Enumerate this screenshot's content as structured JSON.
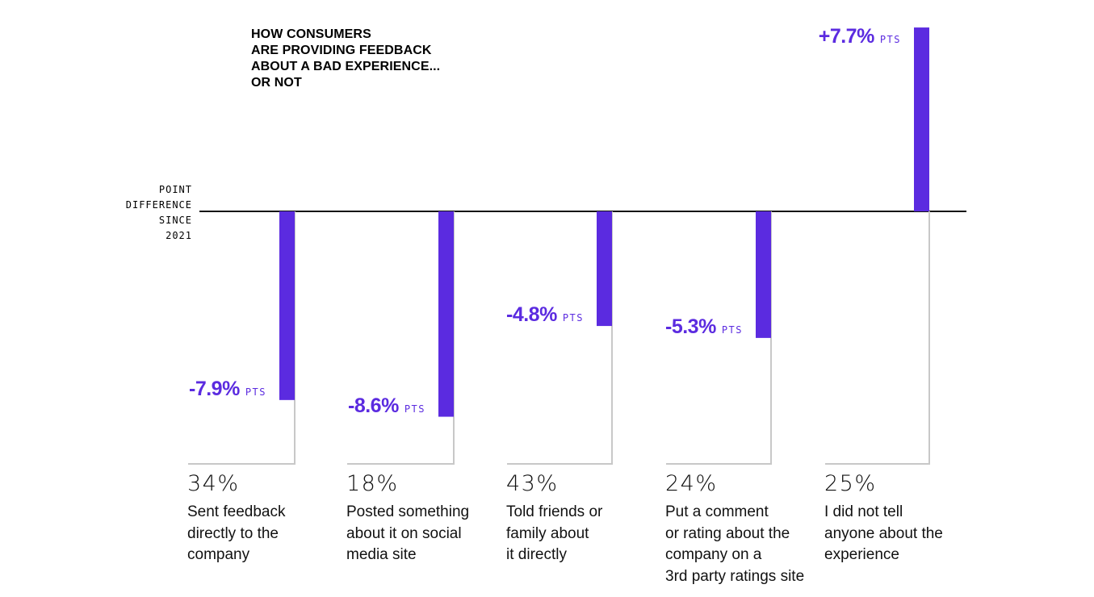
{
  "chart_data": {
    "type": "bar",
    "title_lines": [
      "HOW CONSUMERS",
      "ARE PROVIDING FEEDBACK",
      "ABOUT A BAD EXPERIENCE...",
      "OR NOT"
    ],
    "ylabel_lines": [
      "POINT",
      "DIFFERENCE",
      "SINCE",
      "2021"
    ],
    "unit_label": "PTS",
    "categories": [
      {
        "label_lines": [
          "Sent feedback",
          "directly to the",
          "company"
        ],
        "share": "34%",
        "change": -7.9,
        "change_label": "-7.9%"
      },
      {
        "label_lines": [
          "Posted something",
          "about it on social",
          "media site"
        ],
        "share": "18%",
        "change": -8.6,
        "change_label": "-8.6%"
      },
      {
        "label_lines": [
          "Told friends or",
          "family about",
          "it directly"
        ],
        "share": "43%",
        "change": -4.8,
        "change_label": "-4.8%"
      },
      {
        "label_lines": [
          "Put a comment",
          "or rating about the",
          "company on a",
          "3rd party ratings site"
        ],
        "share": "24%",
        "change": -5.3,
        "change_label": "-5.3%"
      },
      {
        "label_lines": [
          "I did not tell",
          "anyone about the",
          "experience"
        ],
        "share": "25%",
        "change": 7.7,
        "change_label": "+7.7%"
      }
    ],
    "legend": "none",
    "grid": false,
    "colors": {
      "bar": "#5b2be0",
      "baseline": "#111111",
      "leader": "#c8c8c8",
      "text": "#111111"
    }
  }
}
